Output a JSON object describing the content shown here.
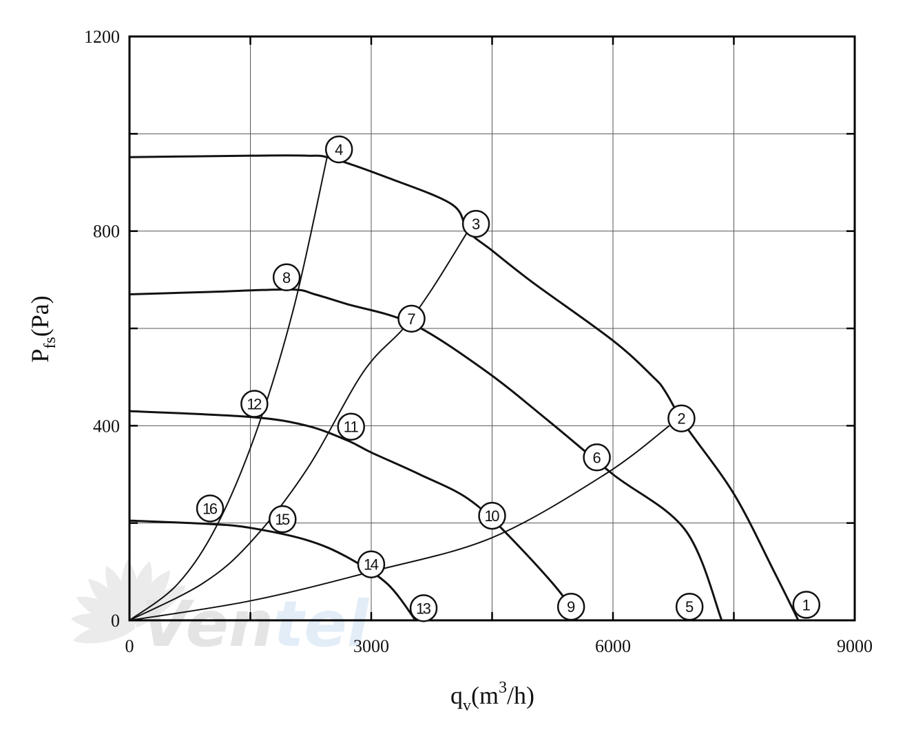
{
  "chart_data": {
    "type": "line",
    "xlabel": {
      "base": "q",
      "sub": "v",
      "open": "(m",
      "sup": "3",
      "close": "/h)"
    },
    "ylabel": {
      "base": "P",
      "sub": "fs",
      "rest": "(Pa)"
    },
    "xlim": [
      0,
      9000
    ],
    "ylim": [
      0,
      1200
    ],
    "x_ticks": [
      0,
      3000,
      6000,
      9000
    ],
    "y_ticks": [
      0,
      400,
      800,
      1200
    ],
    "x_tick_labels": [
      "0",
      "3000",
      "6000",
      "9000"
    ],
    "y_tick_labels": [
      "0",
      "400",
      "800",
      "1200"
    ],
    "grid": true,
    "watermark": {
      "text_dark": "Ven",
      "text_light": "tel",
      "icon": "fan-blades-icon"
    },
    "series": [
      {
        "points": [
          [
            0,
            952
          ],
          [
            1500,
            955
          ],
          [
            2200,
            955
          ],
          [
            2500,
            950
          ],
          [
            3200,
            910
          ],
          [
            4000,
            855
          ],
          [
            4200,
            800
          ],
          [
            4500,
            760
          ],
          [
            5000,
            695
          ],
          [
            6000,
            575
          ],
          [
            6500,
            500
          ],
          [
            6650,
            470
          ],
          [
            6900,
            400
          ],
          [
            7500,
            260
          ],
          [
            8000,
            100
          ],
          [
            8300,
            0
          ]
        ]
      },
      {
        "points": [
          [
            0,
            670
          ],
          [
            1000,
            675
          ],
          [
            2000,
            680
          ],
          [
            2300,
            670
          ],
          [
            2700,
            650
          ],
          [
            3500,
            610
          ],
          [
            4400,
            515
          ],
          [
            5200,
            410
          ],
          [
            6000,
            300
          ],
          [
            6900,
            185
          ],
          [
            7350,
            0
          ]
        ]
      },
      {
        "points": [
          [
            0,
            430
          ],
          [
            1500,
            418
          ],
          [
            2200,
            400
          ],
          [
            2700,
            370
          ],
          [
            3000,
            345
          ],
          [
            3600,
            300
          ],
          [
            4200,
            250
          ],
          [
            4700,
            175
          ],
          [
            5400,
            45
          ],
          [
            5420,
            0
          ]
        ]
      },
      {
        "points": [
          [
            0,
            205
          ],
          [
            1000,
            198
          ],
          [
            1500,
            190
          ],
          [
            2200,
            165
          ],
          [
            2700,
            130
          ],
          [
            3200,
            75
          ],
          [
            3550,
            0
          ]
        ]
      },
      {
        "points": [
          [
            0,
            0
          ],
          [
            600,
            75
          ],
          [
            1100,
            200
          ],
          [
            1600,
            400
          ],
          [
            2050,
            650
          ],
          [
            2450,
            950
          ]
        ]
      },
      {
        "points": [
          [
            0,
            0
          ],
          [
            900,
            75
          ],
          [
            1500,
            160
          ],
          [
            2200,
            310
          ],
          [
            2900,
            510
          ],
          [
            3400,
            600
          ],
          [
            3750,
            680
          ],
          [
            4200,
            800
          ]
        ]
      },
      {
        "points": [
          [
            0,
            0
          ],
          [
            1500,
            40
          ],
          [
            3000,
            100
          ],
          [
            4500,
            170
          ],
          [
            5900,
            300
          ],
          [
            6700,
            400
          ]
        ]
      }
    ],
    "markers": [
      {
        "label": "1",
        "x": 8400,
        "y": 32
      },
      {
        "label": "2",
        "x": 6850,
        "y": 415
      },
      {
        "label": "3",
        "x": 4300,
        "y": 815
      },
      {
        "label": "4",
        "x": 2600,
        "y": 968
      },
      {
        "label": "5",
        "x": 6950,
        "y": 28
      },
      {
        "label": "6",
        "x": 5800,
        "y": 335
      },
      {
        "label": "7",
        "x": 3500,
        "y": 620
      },
      {
        "label": "8",
        "x": 1950,
        "y": 705
      },
      {
        "label": "9",
        "x": 5480,
        "y": 28
      },
      {
        "label": "10",
        "x": 4500,
        "y": 215
      },
      {
        "label": "11",
        "x": 2750,
        "y": 398
      },
      {
        "label": "12",
        "x": 1550,
        "y": 445
      },
      {
        "label": "13",
        "x": 3650,
        "y": 25
      },
      {
        "label": "14",
        "x": 3000,
        "y": 115
      },
      {
        "label": "15",
        "x": 1900,
        "y": 208
      },
      {
        "label": "16",
        "x": 1000,
        "y": 230
      }
    ]
  }
}
